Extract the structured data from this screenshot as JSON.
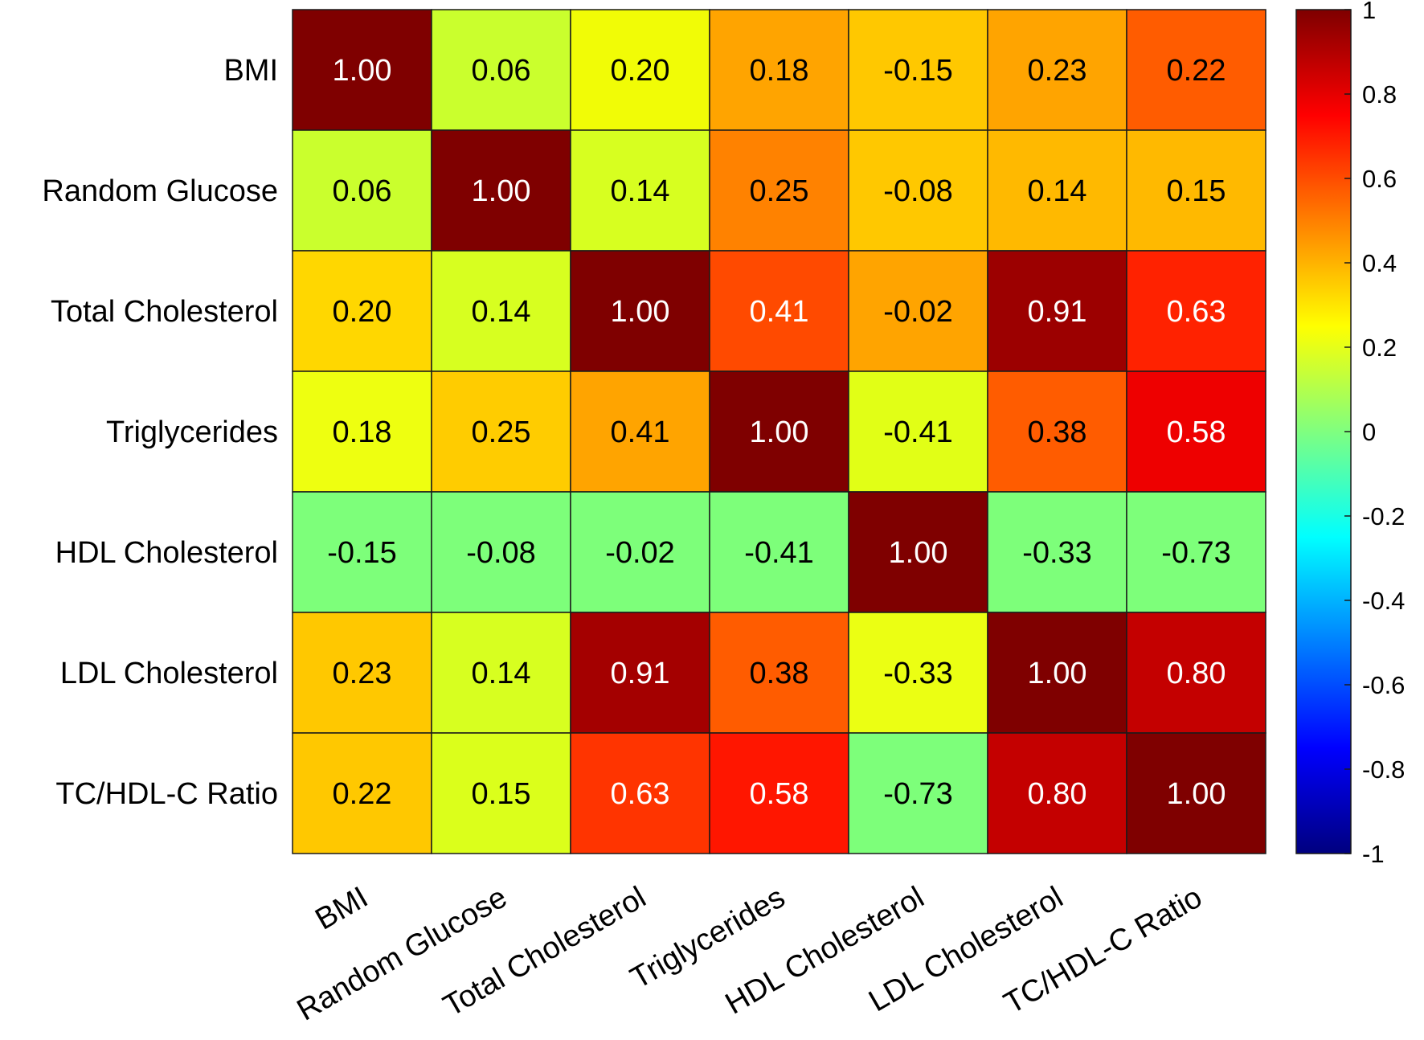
{
  "chart_data": {
    "type": "heatmap",
    "title": "",
    "xlabel": "",
    "ylabel": "",
    "categories": [
      "BMI",
      "Random Glucose",
      "Total Cholesterol",
      "Triglycerides",
      "HDL Cholesterol",
      "LDL Cholesterol",
      "TC/HDL-C Ratio"
    ],
    "values": [
      [
        1.0,
        0.06,
        0.2,
        0.18,
        -0.15,
        0.23,
        0.22
      ],
      [
        0.06,
        1.0,
        0.14,
        0.25,
        -0.08,
        0.14,
        0.15
      ],
      [
        0.2,
        0.14,
        1.0,
        0.41,
        -0.02,
        0.91,
        0.63
      ],
      [
        0.18,
        0.25,
        0.41,
        1.0,
        -0.41,
        0.38,
        0.58
      ],
      [
        -0.15,
        -0.08,
        -0.02,
        -0.41,
        1.0,
        -0.33,
        -0.73
      ],
      [
        0.23,
        0.14,
        0.91,
        0.38,
        -0.33,
        1.0,
        0.8
      ],
      [
        0.22,
        0.15,
        0.63,
        0.58,
        -0.73,
        0.8,
        1.0
      ]
    ],
    "cell_labels": [
      [
        "1.00",
        "0.06",
        "0.20",
        "0.18",
        "-0.15",
        "0.23",
        "0.22"
      ],
      [
        "0.06",
        "1.00",
        "0.14",
        "0.25",
        "-0.08",
        "0.14",
        "0.15"
      ],
      [
        "0.20",
        "0.14",
        "1.00",
        "0.41",
        "-0.02",
        "0.91",
        "0.63"
      ],
      [
        "0.18",
        "0.25",
        "0.41",
        "1.00",
        "-0.41",
        "0.38",
        "0.58"
      ],
      [
        "-0.15",
        "-0.08",
        "-0.02",
        "-0.41",
        "1.00",
        "-0.33",
        "-0.73"
      ],
      [
        "0.23",
        "0.14",
        "0.91",
        "0.38",
        "-0.33",
        "1.00",
        "0.80"
      ],
      [
        "0.22",
        "0.15",
        "0.63",
        "0.58",
        "-0.73",
        "0.80",
        "1.00"
      ]
    ],
    "cell_colors": [
      [
        "#7f0000",
        "#caff2d",
        "#f1fc06",
        "#ffa400",
        "#ffc800",
        "#ffa400",
        "#ff5c00"
      ],
      [
        "#caff2d",
        "#7f0000",
        "#d7ff20",
        "#ff8200",
        "#ffc800",
        "#ffb900",
        "#ffb900"
      ],
      [
        "#ffd700",
        "#d7ff20",
        "#7f0000",
        "#ff4a00",
        "#ffa400",
        "#9c0000",
        "#ff2200"
      ],
      [
        "#eeff10",
        "#ffcc00",
        "#ffa400",
        "#7f0000",
        "#e1ff16",
        "#ff5c00",
        "#ee0000"
      ],
      [
        "#7dff7a",
        "#7dff7a",
        "#7dff7a",
        "#7dff7a",
        "#7f0000",
        "#7dff7a",
        "#7dff7a"
      ],
      [
        "#ffc800",
        "#d7ff20",
        "#a40000",
        "#ff5c00",
        "#ebff13",
        "#7f0000",
        "#c40000"
      ],
      [
        "#ffc800",
        "#dbff1b",
        "#ff3400",
        "#ff1600",
        "#7dff7a",
        "#c40000",
        "#7f0000"
      ]
    ],
    "text_colors": [
      [
        "#ffffff",
        "#000000",
        "#000000",
        "#000000",
        "#000000",
        "#000000",
        "#000000"
      ],
      [
        "#000000",
        "#ffffff",
        "#000000",
        "#000000",
        "#000000",
        "#000000",
        "#000000"
      ],
      [
        "#000000",
        "#000000",
        "#ffffff",
        "#ffffff",
        "#000000",
        "#ffffff",
        "#ffffff"
      ],
      [
        "#000000",
        "#000000",
        "#000000",
        "#ffffff",
        "#000000",
        "#000000",
        "#ffffff"
      ],
      [
        "#000000",
        "#000000",
        "#000000",
        "#000000",
        "#ffffff",
        "#000000",
        "#000000"
      ],
      [
        "#000000",
        "#000000",
        "#ffffff",
        "#000000",
        "#000000",
        "#ffffff",
        "#ffffff"
      ],
      [
        "#000000",
        "#000000",
        "#ffffff",
        "#ffffff",
        "#000000",
        "#ffffff",
        "#ffffff"
      ]
    ],
    "colorbar": {
      "range": [
        -1,
        1
      ],
      "ticks": [
        1,
        0.8,
        0.6,
        0.4,
        0.2,
        0,
        -0.2,
        -0.4,
        -0.6,
        -0.8,
        -1
      ],
      "tick_labels": [
        "1",
        "0.8",
        "0.6",
        "0.4",
        "0.2",
        "0",
        "-0.2",
        "-0.4",
        "-0.6",
        "-0.8",
        "-1"
      ],
      "colormap_stops": [
        {
          "value": -1.0,
          "color": "#00007f"
        },
        {
          "value": -0.75,
          "color": "#0000ff"
        },
        {
          "value": -0.25,
          "color": "#00ffff"
        },
        {
          "value": 0.25,
          "color": "#ffff00"
        },
        {
          "value": 0.75,
          "color": "#ff0000"
        },
        {
          "value": 1.0,
          "color": "#7f0000"
        }
      ],
      "placement": "right"
    },
    "grid": true
  }
}
